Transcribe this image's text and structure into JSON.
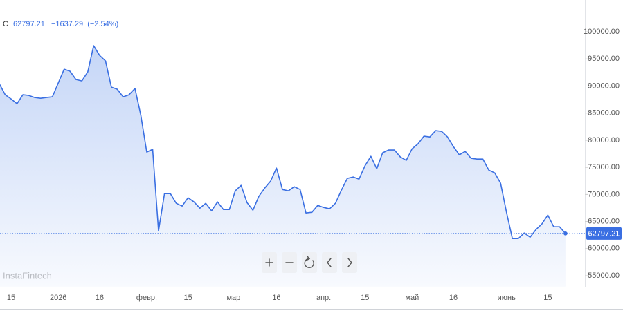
{
  "header": {
    "symbol": "C",
    "change": "−1637.29",
    "change_pct": "(−2.54%)"
  },
  "watermark": "InstaFintech",
  "chart_data": {
    "type": "line",
    "categories": [
      null,
      null,
      "15",
      null,
      null,
      null,
      null,
      null,
      null,
      null,
      "2026",
      null,
      null,
      null,
      null,
      null,
      null,
      "16",
      null,
      null,
      null,
      null,
      null,
      null,
      null,
      "февр.",
      null,
      null,
      null,
      null,
      null,
      null,
      "15",
      null,
      null,
      null,
      null,
      null,
      null,
      null,
      "март",
      null,
      null,
      null,
      null,
      null,
      null,
      "16",
      null,
      null,
      null,
      null,
      null,
      null,
      null,
      "апр.",
      null,
      null,
      null,
      null,
      null,
      null,
      "15",
      null,
      null,
      null,
      null,
      null,
      null,
      null,
      "май",
      null,
      null,
      null,
      null,
      null,
      null,
      "16",
      null,
      null,
      null,
      null,
      null,
      null,
      null,
      null,
      "июнь",
      null,
      null,
      null,
      null,
      null,
      null,
      "15",
      null,
      null,
      null
    ],
    "values": [
      90430,
      88390,
      87630,
      86735,
      88390,
      88270,
      87880,
      87750,
      87880,
      88010,
      90560,
      93110,
      92730,
      91200,
      90940,
      92600,
      97450,
      95660,
      94640,
      89800,
      89410,
      88010,
      88390,
      89540,
      84570,
      77810,
      78320,
      63270,
      70150,
      70150,
      68370,
      67860,
      69390,
      68620,
      67470,
      68370,
      66970,
      68620,
      67220,
      67220,
      70660,
      71680,
      68500,
      67090,
      69640,
      71170,
      72450,
      74870,
      70920,
      70660,
      71430,
      70920,
      66580,
      66710,
      67980,
      67600,
      67350,
      68370,
      70790,
      72960,
      73220,
      72830,
      75260,
      77040,
      74740,
      77680,
      78190,
      78190,
      76910,
      76280,
      78440,
      79340,
      80740,
      80610,
      81760,
      81630,
      80610,
      78830,
      77300,
      77940,
      76660,
      76530,
      76530,
      74490,
      73980,
      72070,
      66710,
      61860,
      61860,
      62880,
      62120,
      63520,
      64540,
      66200,
      64030,
      64030,
      62797.21
    ],
    "color": "#3a6fe2",
    "ylim": [
      53000,
      104000
    ],
    "yticks": [
      {
        "value": 55000,
        "label": "55000.00"
      },
      {
        "value": 60000,
        "label": "60000.00"
      },
      {
        "value": 65000,
        "label": "65000.00"
      },
      {
        "value": 70000,
        "label": "70000.00"
      },
      {
        "value": 75000,
        "label": "75000.00"
      },
      {
        "value": 80000,
        "label": "80000.00"
      },
      {
        "value": 85000,
        "label": "85000.00"
      },
      {
        "value": 90000,
        "label": "90000.00"
      },
      {
        "value": 95000,
        "label": "95000.00"
      },
      {
        "value": 100000,
        "label": "100000.00"
      }
    ],
    "last_price": {
      "value": 62797.21,
      "label": "62797.21"
    },
    "grid": false
  }
}
